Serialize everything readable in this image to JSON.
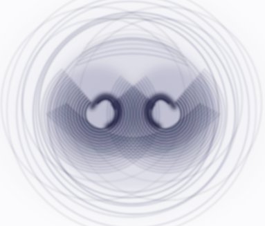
{
  "image": {
    "subject": "fractal-flame-swirl",
    "colors": {
      "background": "#f7f7fa",
      "ink": "#1c1f3f",
      "haze": "#c9cad9"
    }
  }
}
